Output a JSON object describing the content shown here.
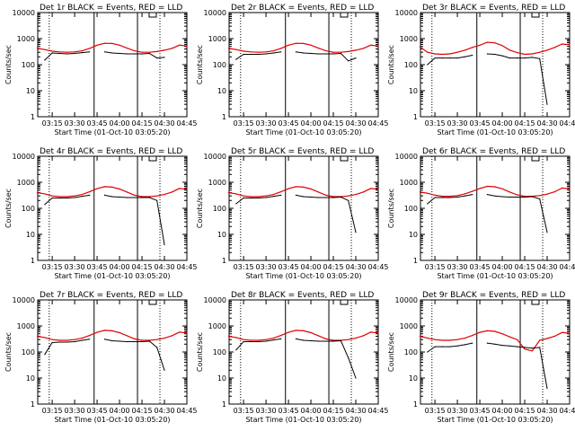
{
  "colors": {
    "events": "#000000",
    "lld": "#e00000",
    "axes": "#000000",
    "background": "#ffffff"
  },
  "chart_data": [
    {
      "type": "line",
      "title": "Det 1r BLACK = Events, RED = LLD",
      "xlabel": "Start Time (01-Oct-10 03:05:20)",
      "ylabel": "Counts/sec",
      "ylog": true,
      "ylim": [
        1,
        10000
      ],
      "yticks": [
        "1",
        "10",
        "100",
        "1000",
        "10000"
      ],
      "xticks": [
        "03:15",
        "03:30",
        "03:45",
        "04:00",
        "04:15",
        "04:30",
        "04:45"
      ],
      "series": [
        {
          "color": "#e00000",
          "x": [
            "03:05",
            "03:10",
            "03:15",
            "03:20",
            "03:25",
            "03:30",
            "03:35",
            "03:40",
            "03:45",
            "03:50",
            "03:55",
            "04:00",
            "04:05",
            "04:10",
            "04:15",
            "04:20",
            "04:25",
            "04:30",
            "04:35",
            "04:40",
            "04:45"
          ],
          "y": [
            420,
            380,
            330,
            310,
            300,
            310,
            340,
            420,
            560,
            660,
            650,
            560,
            430,
            340,
            300,
            300,
            320,
            360,
            420,
            560,
            520
          ]
        },
        {
          "color": "#000000",
          "x": [
            "03:10",
            "03:15",
            "03:20",
            "03:25",
            "03:30",
            "03:35",
            "03:40",
            "03:45",
            "03:50",
            "03:55",
            "04:00",
            "04:05",
            "04:10",
            "04:15",
            "04:20",
            "04:25",
            "04:30"
          ],
          "y": [
            150,
            280,
            270,
            260,
            270,
            290,
            310,
            null,
            310,
            280,
            270,
            260,
            260,
            260,
            270,
            180,
            190
          ]
        }
      ]
    },
    {
      "type": "line",
      "title": "Det 2r BLACK = Events, RED = LLD",
      "xlabel": "Start Time (01-Oct-10 03:05:20)",
      "ylabel": "Counts/sec",
      "ylog": true,
      "ylim": [
        1,
        10000
      ],
      "yticks": [
        "1",
        "10",
        "100",
        "1000",
        "10000"
      ],
      "xticks": [
        "03:15",
        "03:30",
        "03:45",
        "04:00",
        "04:15",
        "04:30",
        "04:45"
      ],
      "series": [
        {
          "color": "#e00000",
          "x": [
            "03:05",
            "03:10",
            "03:15",
            "03:20",
            "03:25",
            "03:30",
            "03:35",
            "03:40",
            "03:45",
            "03:50",
            "03:55",
            "04:00",
            "04:05",
            "04:10",
            "04:15",
            "04:20",
            "04:25",
            "04:30",
            "04:35",
            "04:40",
            "04:45"
          ],
          "y": [
            420,
            380,
            330,
            310,
            300,
            310,
            340,
            420,
            560,
            660,
            650,
            560,
            430,
            340,
            300,
            300,
            320,
            360,
            420,
            560,
            520
          ]
        },
        {
          "color": "#000000",
          "x": [
            "03:10",
            "03:15",
            "03:20",
            "03:25",
            "03:30",
            "03:35",
            "03:40",
            "03:45",
            "03:50",
            "03:55",
            "04:00",
            "04:05",
            "04:10",
            "04:15",
            "04:20",
            "04:25",
            "04:30"
          ],
          "y": [
            160,
            250,
            250,
            250,
            260,
            280,
            310,
            null,
            310,
            280,
            270,
            260,
            260,
            260,
            270,
            140,
            180
          ]
        }
      ]
    },
    {
      "type": "line",
      "title": "Det 3r BLACK = Events, RED = LLD",
      "xlabel": "Start Time (01-Oct-10 03:05:20)",
      "ylabel": "Counts/sec",
      "ylog": true,
      "ylim": [
        1,
        10000
      ],
      "yticks": [
        "1",
        "10",
        "100",
        "1000",
        "10000"
      ],
      "xticks": [
        "03:15",
        "03:30",
        "03:45",
        "04:00",
        "04:15",
        "04:30",
        "04:45"
      ],
      "series": [
        {
          "color": "#e00000",
          "x": [
            "03:05",
            "03:10",
            "03:15",
            "03:20",
            "03:25",
            "03:30",
            "03:35",
            "03:40",
            "03:45",
            "03:50",
            "03:55",
            "04:00",
            "04:05",
            "04:10",
            "04:15",
            "04:20",
            "04:25",
            "04:30",
            "04:35",
            "04:40",
            "04:45"
          ],
          "y": [
            480,
            300,
            260,
            250,
            260,
            300,
            360,
            460,
            560,
            720,
            690,
            540,
            360,
            290,
            250,
            260,
            300,
            360,
            460,
            620,
            580
          ]
        },
        {
          "color": "#000000",
          "x": [
            "03:10",
            "03:15",
            "03:20",
            "03:25",
            "03:30",
            "03:35",
            "03:40",
            "03:45",
            "03:50",
            "03:55",
            "04:00",
            "04:05",
            "04:10",
            "04:15",
            "04:20",
            "04:25",
            "04:30"
          ],
          "y": [
            100,
            180,
            180,
            180,
            180,
            200,
            230,
            null,
            260,
            250,
            220,
            180,
            180,
            180,
            190,
            170,
            3
          ]
        }
      ]
    },
    {
      "type": "line",
      "title": "Det 4r BLACK = Events, RED = LLD",
      "xlabel": "Start Time (01-Oct-10 03:05:20)",
      "ylabel": "Counts/sec",
      "ylog": true,
      "ylim": [
        1,
        10000
      ],
      "yticks": [
        "1",
        "10",
        "100",
        "1000",
        "10000"
      ],
      "xticks": [
        "03:15",
        "03:30",
        "03:45",
        "04:00",
        "04:15",
        "04:30",
        "04:45"
      ],
      "series": [
        {
          "color": "#e00000",
          "x": [
            "03:05",
            "03:10",
            "03:15",
            "03:20",
            "03:25",
            "03:30",
            "03:35",
            "03:40",
            "03:45",
            "03:50",
            "03:55",
            "04:00",
            "04:05",
            "04:10",
            "04:15",
            "04:20",
            "04:25",
            "04:30",
            "04:35",
            "04:40",
            "04:45"
          ],
          "y": [
            400,
            360,
            300,
            280,
            280,
            300,
            340,
            430,
            570,
            680,
            650,
            550,
            420,
            320,
            280,
            280,
            300,
            340,
            420,
            580,
            540
          ]
        },
        {
          "color": "#000000",
          "x": [
            "03:10",
            "03:15",
            "03:20",
            "03:25",
            "03:30",
            "03:35",
            "03:40",
            "03:45",
            "03:50",
            "03:55",
            "04:00",
            "04:05",
            "04:10",
            "04:15",
            "04:20",
            "04:25",
            "04:30"
          ],
          "y": [
            140,
            250,
            250,
            250,
            260,
            290,
            320,
            null,
            320,
            280,
            270,
            260,
            260,
            260,
            260,
            200,
            4
          ]
        }
      ]
    },
    {
      "type": "line",
      "title": "Det 5r BLACK = Events, RED = LLD",
      "xlabel": "Start Time (01-Oct-10 03:05:20)",
      "ylabel": "Counts/sec",
      "ylog": true,
      "ylim": [
        1,
        10000
      ],
      "yticks": [
        "1",
        "10",
        "100",
        "1000",
        "10000"
      ],
      "xticks": [
        "03:15",
        "03:30",
        "03:45",
        "04:00",
        "04:15",
        "04:30",
        "04:45"
      ],
      "series": [
        {
          "color": "#e00000",
          "x": [
            "03:05",
            "03:10",
            "03:15",
            "03:20",
            "03:25",
            "03:30",
            "03:35",
            "03:40",
            "03:45",
            "03:50",
            "03:55",
            "04:00",
            "04:05",
            "04:10",
            "04:15",
            "04:20",
            "04:25",
            "04:30",
            "04:35",
            "04:40",
            "04:45"
          ],
          "y": [
            400,
            360,
            300,
            280,
            280,
            300,
            340,
            430,
            570,
            680,
            650,
            550,
            420,
            320,
            280,
            280,
            300,
            340,
            420,
            580,
            540
          ]
        },
        {
          "color": "#000000",
          "x": [
            "03:10",
            "03:15",
            "03:20",
            "03:25",
            "03:30",
            "03:35",
            "03:40",
            "03:45",
            "03:50",
            "03:55",
            "04:00",
            "04:05",
            "04:10",
            "04:15",
            "04:20",
            "04:25",
            "04:30"
          ],
          "y": [
            150,
            250,
            250,
            250,
            260,
            290,
            320,
            null,
            320,
            280,
            270,
            260,
            260,
            260,
            270,
            200,
            12
          ]
        }
      ]
    },
    {
      "type": "line",
      "title": "Det 6r BLACK = Events, RED = LLD",
      "xlabel": "Start Time (01-Oct-10 03:05:20)",
      "ylabel": "Counts/sec",
      "ylog": true,
      "ylim": [
        1,
        10000
      ],
      "yticks": [
        "1",
        "10",
        "100",
        "1000",
        "10000"
      ],
      "xticks": [
        "03:15",
        "03:30",
        "03:45",
        "04:00",
        "04:15",
        "04:30",
        "04:45"
      ],
      "series": [
        {
          "color": "#e00000",
          "x": [
            "03:05",
            "03:10",
            "03:15",
            "03:20",
            "03:25",
            "03:30",
            "03:35",
            "03:40",
            "03:45",
            "03:50",
            "03:55",
            "04:00",
            "04:05",
            "04:10",
            "04:15",
            "04:20",
            "04:25",
            "04:30",
            "04:35",
            "04:40",
            "04:45"
          ],
          "y": [
            420,
            380,
            320,
            290,
            290,
            310,
            360,
            450,
            580,
            700,
            670,
            560,
            420,
            330,
            290,
            290,
            310,
            350,
            430,
            600,
            560
          ]
        },
        {
          "color": "#000000",
          "x": [
            "03:10",
            "03:15",
            "03:20",
            "03:25",
            "03:30",
            "03:35",
            "03:40",
            "03:45",
            "03:50",
            "03:55",
            "04:00",
            "04:05",
            "04:10",
            "04:15",
            "04:20",
            "04:25",
            "04:30"
          ],
          "y": [
            150,
            260,
            260,
            260,
            270,
            300,
            340,
            null,
            340,
            300,
            280,
            270,
            270,
            270,
            280,
            230,
            12
          ]
        }
      ]
    },
    {
      "type": "line",
      "title": "Det 7r BLACK = Events, RED = LLD",
      "xlabel": "Start Time (01-Oct-10 03:05:20)",
      "ylabel": "Counts/sec",
      "ylog": true,
      "ylim": [
        1,
        10000
      ],
      "yticks": [
        "1",
        "10",
        "100",
        "1000",
        "10000"
      ],
      "xticks": [
        "03:15",
        "03:30",
        "03:45",
        "04:00",
        "04:15",
        "04:30",
        "04:45"
      ],
      "series": [
        {
          "color": "#e00000",
          "x": [
            "03:05",
            "03:10",
            "03:15",
            "03:20",
            "03:25",
            "03:30",
            "03:35",
            "03:40",
            "03:45",
            "03:50",
            "03:55",
            "04:00",
            "04:05",
            "04:10",
            "04:15",
            "04:20",
            "04:25",
            "04:30",
            "04:35",
            "04:40",
            "04:45"
          ],
          "y": [
            400,
            360,
            300,
            280,
            280,
            300,
            340,
            430,
            570,
            680,
            650,
            550,
            420,
            320,
            280,
            280,
            300,
            340,
            420,
            580,
            540
          ]
        },
        {
          "color": "#000000",
          "x": [
            "03:10",
            "03:15",
            "03:20",
            "03:25",
            "03:30",
            "03:35",
            "03:40",
            "03:45",
            "03:50",
            "03:55",
            "04:00",
            "04:05",
            "04:10",
            "04:15",
            "04:20",
            "04:25",
            "04:30"
          ],
          "y": [
            80,
            230,
            240,
            240,
            250,
            280,
            310,
            null,
            310,
            270,
            260,
            250,
            250,
            250,
            260,
            150,
            20
          ]
        }
      ]
    },
    {
      "type": "line",
      "title": "Det 8r BLACK = Events, RED = LLD",
      "xlabel": "Start Time (01-Oct-10 03:05:20)",
      "ylabel": "Counts/sec",
      "ylog": true,
      "ylim": [
        1,
        10000
      ],
      "yticks": [
        "1",
        "10",
        "100",
        "1000",
        "10000"
      ],
      "xticks": [
        "03:15",
        "03:30",
        "03:45",
        "04:00",
        "04:15",
        "04:30",
        "04:45"
      ],
      "series": [
        {
          "color": "#e00000",
          "x": [
            "03:05",
            "03:10",
            "03:15",
            "03:20",
            "03:25",
            "03:30",
            "03:35",
            "03:40",
            "03:45",
            "03:50",
            "03:55",
            "04:00",
            "04:05",
            "04:10",
            "04:15",
            "04:20",
            "04:25",
            "04:30",
            "04:35",
            "04:40",
            "04:45"
          ],
          "y": [
            400,
            360,
            300,
            280,
            280,
            300,
            340,
            430,
            570,
            680,
            650,
            550,
            420,
            320,
            280,
            280,
            300,
            340,
            420,
            580,
            540
          ]
        },
        {
          "color": "#000000",
          "x": [
            "03:10",
            "03:15",
            "03:20",
            "03:25",
            "03:30",
            "03:35",
            "03:40",
            "03:45",
            "03:50",
            "03:55",
            "04:00",
            "04:05",
            "04:10",
            "04:15",
            "04:20",
            "04:25",
            "04:30"
          ],
          "y": [
            120,
            250,
            250,
            250,
            260,
            290,
            320,
            null,
            320,
            280,
            270,
            260,
            260,
            260,
            270,
            60,
            10
          ]
        }
      ]
    },
    {
      "type": "line",
      "title": "Det 9r BLACK = Events, RED = LLD",
      "xlabel": "Start Time (01-Oct-10 03:05:20)",
      "ylabel": "Counts/sec",
      "ylog": true,
      "ylim": [
        1,
        10000
      ],
      "yticks": [
        "1",
        "10",
        "100",
        "1000",
        "10000"
      ],
      "xticks": [
        "03:15",
        "03:30",
        "03:45",
        "04:00",
        "04:15",
        "04:30",
        "04:45"
      ],
      "series": [
        {
          "color": "#e00000",
          "x": [
            "03:05",
            "03:10",
            "03:15",
            "03:20",
            "03:25",
            "03:30",
            "03:35",
            "03:40",
            "03:45",
            "03:50",
            "03:55",
            "04:00",
            "04:05",
            "04:10",
            "04:15",
            "04:20",
            "04:25",
            "04:30",
            "04:35",
            "04:40",
            "04:45"
          ],
          "y": [
            400,
            340,
            300,
            280,
            280,
            300,
            340,
            430,
            570,
            650,
            620,
            500,
            380,
            300,
            130,
            110,
            280,
            330,
            400,
            560,
            520
          ]
        },
        {
          "color": "#000000",
          "x": [
            "03:10",
            "03:15",
            "03:20",
            "03:25",
            "03:30",
            "03:35",
            "03:40",
            "03:45",
            "03:50",
            "03:55",
            "04:00",
            "04:05",
            "04:10",
            "04:15",
            "04:20",
            "04:25",
            "04:30"
          ],
          "y": [
            100,
            160,
            160,
            160,
            170,
            190,
            220,
            null,
            220,
            200,
            180,
            170,
            160,
            150,
            140,
            150,
            4
          ]
        }
      ]
    }
  ]
}
